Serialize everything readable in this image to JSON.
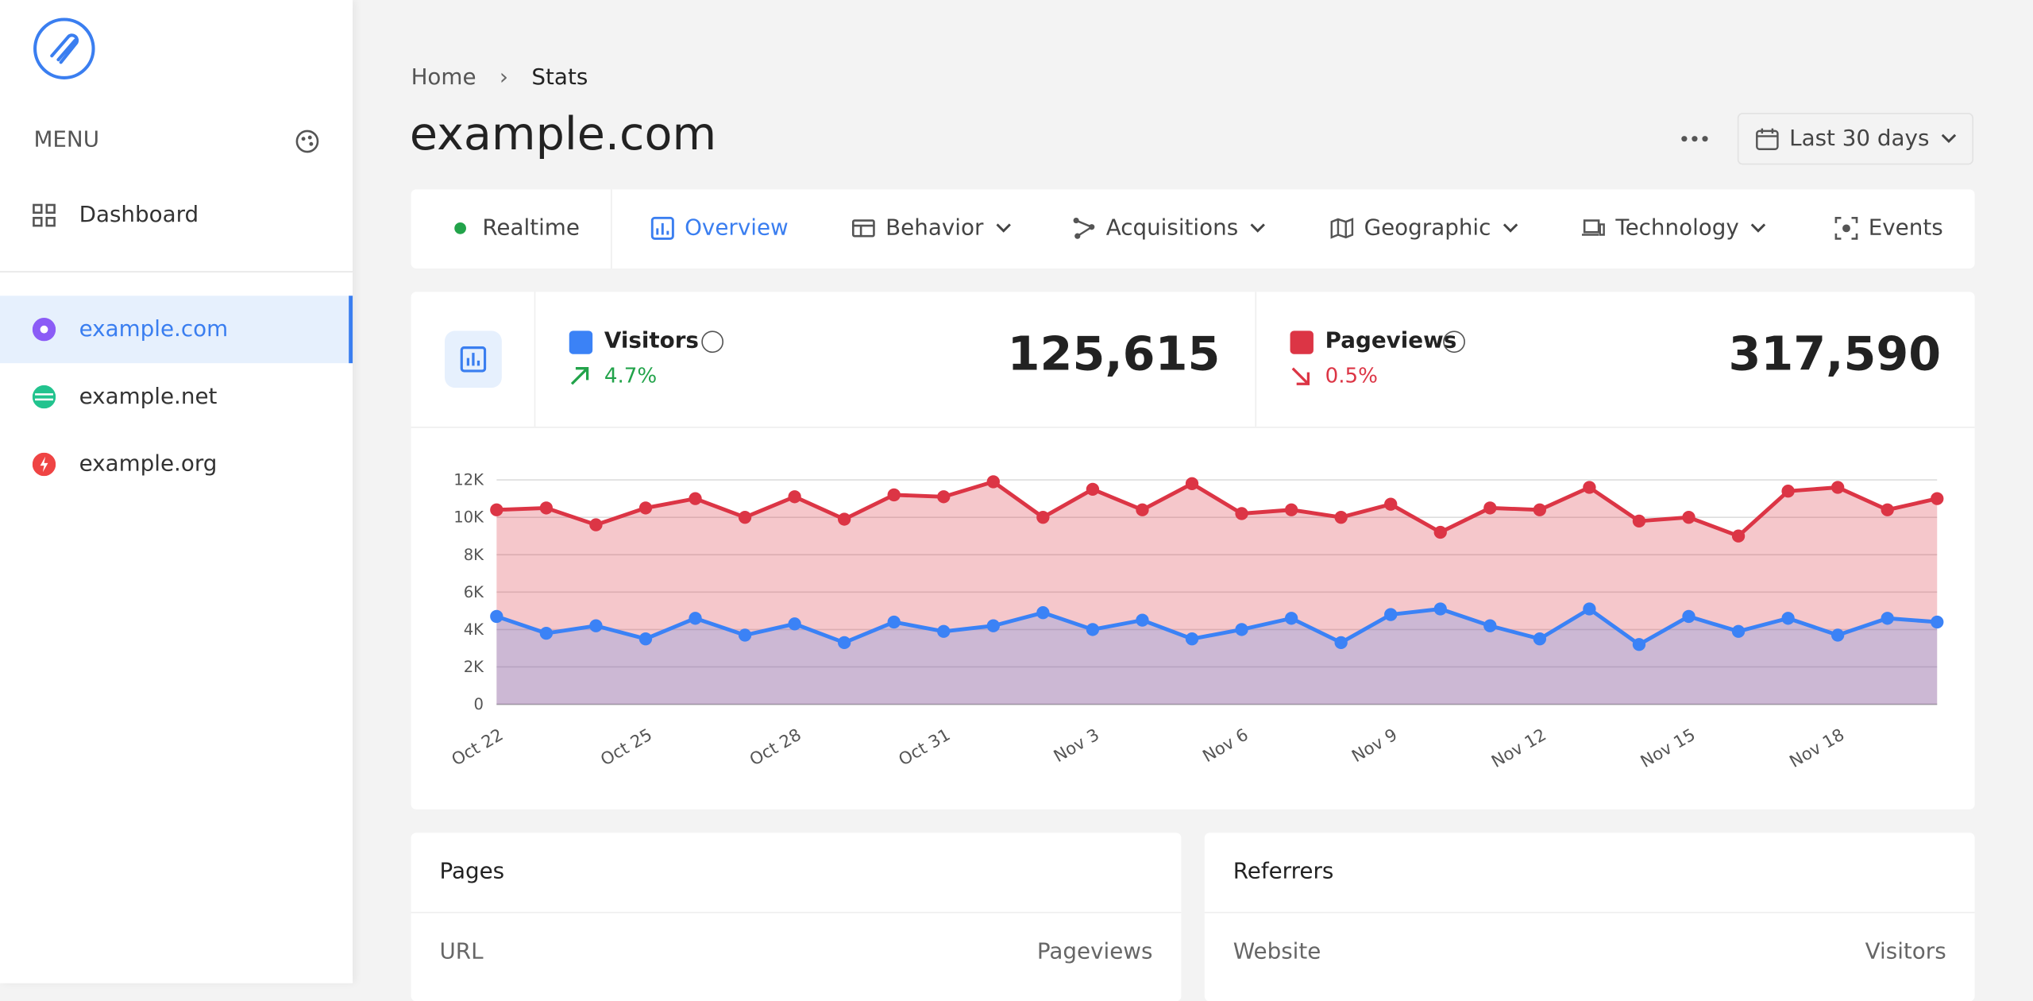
{
  "sidebar": {
    "menu_title": "MENU",
    "items": [
      "Dashboard"
    ],
    "sites": [
      "example.com",
      "example.net",
      "example.org"
    ]
  },
  "breadcrumb": [
    "Home",
    "Stats"
  ],
  "page_title": "example.com",
  "date_range": "Last 30 days",
  "tabs": [
    "Realtime",
    "Overview",
    "Behavior",
    "Acquisitions",
    "Geographic",
    "Technology",
    "Events"
  ],
  "stats": [
    {
      "label": "Visitors",
      "change": "4.7%",
      "value": "125,615"
    },
    {
      "label": "Pageviews",
      "change": "0.5%",
      "value": "317,590"
    }
  ],
  "chart_data": {
    "type": "area",
    "categories": [
      "Oct 22",
      null,
      null,
      "Oct 25",
      null,
      null,
      "Oct 28",
      null,
      null,
      "Oct 31",
      null,
      null,
      "Nov 3",
      null,
      null,
      "Nov 6",
      null,
      null,
      "Nov 9",
      null,
      null,
      "Nov 12",
      null,
      null,
      "Nov 15",
      null,
      null,
      "Nov 18",
      null,
      null
    ],
    "series": [
      {
        "name": "Pageviews",
        "color": "#dc3545",
        "values": [
          10400,
          10500,
          9600,
          10500,
          11000,
          10000,
          11100,
          9900,
          11200,
          11100,
          11900,
          10000,
          11500,
          10400,
          11800,
          10200,
          10400,
          10000,
          10700,
          9200,
          10500,
          10400,
          11600,
          9800,
          10000,
          9000,
          11400,
          11600,
          10400,
          11000
        ]
      },
      {
        "name": "Visitors",
        "color": "#3b82f6",
        "values": [
          4700,
          3800,
          4200,
          3500,
          4600,
          3700,
          4300,
          3300,
          4400,
          3900,
          4200,
          4900,
          4000,
          4500,
          3500,
          4000,
          4600,
          3300,
          4800,
          5100,
          4200,
          3500,
          5100,
          3200,
          4700,
          3900,
          4600,
          3700,
          4600,
          4400
        ]
      }
    ],
    "ylim": [
      0,
      12000
    ],
    "yticks": [
      0,
      {
        "value": 2000,
        "label": "2K"
      },
      {
        "value": 4000,
        "label": "4K"
      },
      {
        "value": 6000,
        "label": "6K"
      },
      {
        "value": 8000,
        "label": "8K"
      },
      {
        "value": 10000,
        "label": "10K"
      },
      {
        "value": 12000,
        "label": "12K"
      }
    ],
    "grid": true
  },
  "panels": [
    {
      "title": "Pages",
      "columns": [
        "URL",
        "Pageviews"
      ]
    },
    {
      "title": "Referrers",
      "columns": [
        "Website",
        "Visitors"
      ]
    }
  ]
}
